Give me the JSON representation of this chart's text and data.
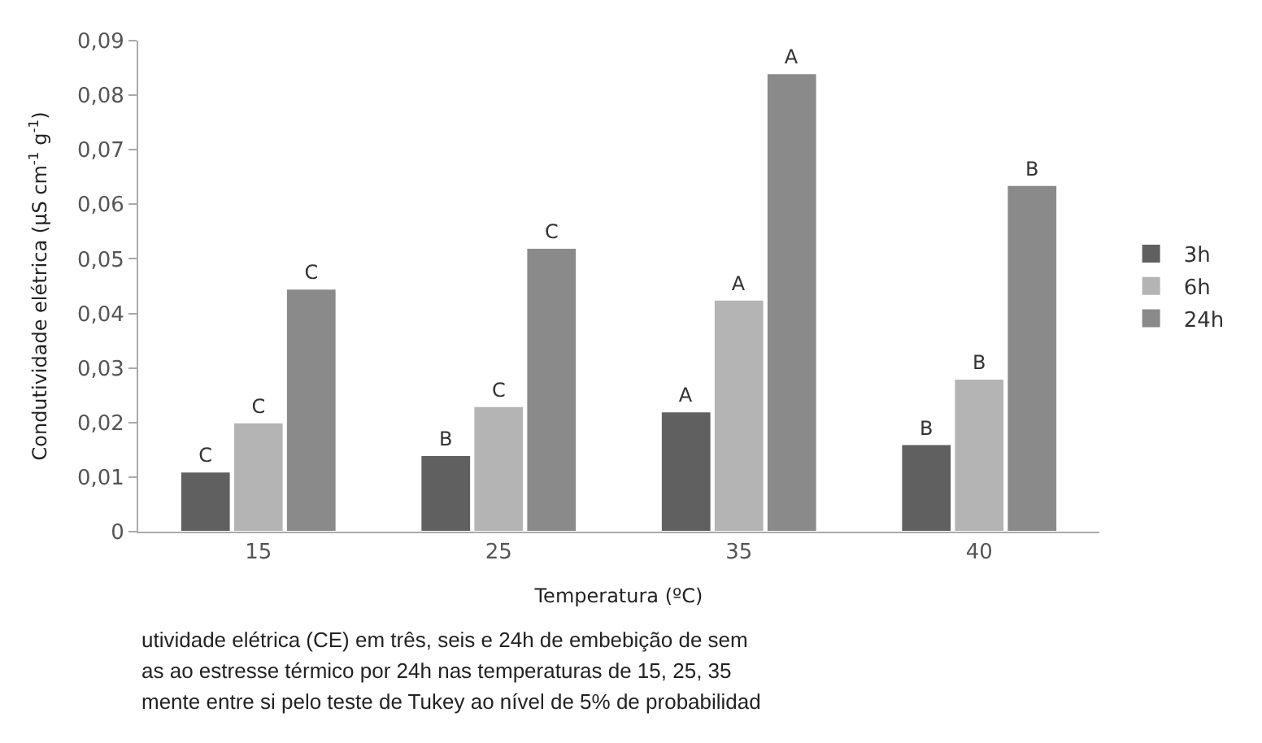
{
  "chart_data": {
    "type": "bar",
    "categories": [
      "15",
      "25",
      "35",
      "40"
    ],
    "xlabel": "Temperatura (ºC)",
    "ylabel": "Condutividade elétrica (µS cm$^{-1}$ g$^{-1}$)",
    "ylim": [
      0,
      0.09
    ],
    "yticks": [
      {
        "value": 0,
        "label": "0"
      },
      {
        "value": 0.01,
        "label": "0,01"
      },
      {
        "value": 0.02,
        "label": "0,02"
      },
      {
        "value": 0.03,
        "label": "0,03"
      },
      {
        "value": 0.04,
        "label": "0,04"
      },
      {
        "value": 0.05,
        "label": "0,05"
      },
      {
        "value": 0.06,
        "label": "0,06"
      },
      {
        "value": 0.07,
        "label": "0,07"
      },
      {
        "value": 0.08,
        "label": "0,08"
      },
      {
        "value": 0.09,
        "label": "0,09"
      }
    ],
    "series": [
      {
        "name": "3h",
        "color": "#606060",
        "values": [
          0.011,
          0.014,
          0.022,
          0.016
        ],
        "value_labels": [
          "C",
          "B",
          "A",
          "B"
        ]
      },
      {
        "name": "6h",
        "color": "#b4b4b4",
        "values": [
          0.02,
          0.023,
          0.0425,
          0.028
        ],
        "value_labels": [
          "C",
          "C",
          "A",
          "B"
        ]
      },
      {
        "name": "24h",
        "color": "#8a8a8a",
        "values": [
          0.0445,
          0.052,
          0.084,
          0.0635
        ],
        "value_labels": [
          "C",
          "C",
          "A",
          "B"
        ]
      }
    ],
    "legend": "right",
    "annotations": [
      "utividade elétrica (CE) em três, seis e 24h de embebição de sem",
      "as ao estresse térmico por 24h nas temperaturas de 15, 25, 35",
      "mente entre si pelo teste de Tukey ao nível de 5% de probabilidad"
    ]
  }
}
